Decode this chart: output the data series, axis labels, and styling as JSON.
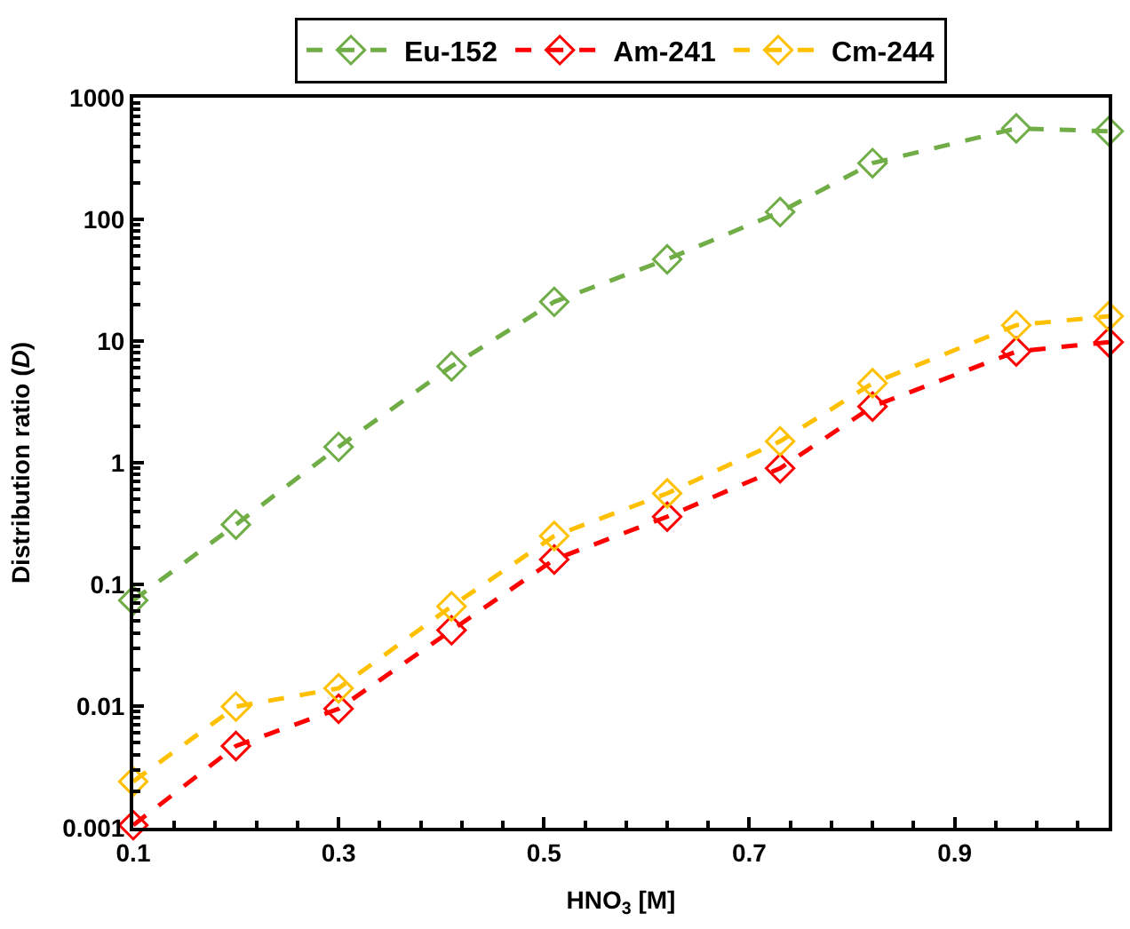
{
  "chart_data": {
    "type": "line",
    "xlabel": "HNO$_{3}$ [M]",
    "ylabel": "Distribution ratio (D)",
    "x": [
      0.1,
      0.2,
      0.3,
      0.41,
      0.51,
      0.62,
      0.73,
      0.82,
      0.96,
      1.05
    ],
    "series": [
      {
        "name": "Eu-152",
        "color": "#70ad47",
        "values": [
          0.074,
          0.31,
          1.35,
          6.2,
          21,
          47,
          115,
          290,
          560,
          530
        ]
      },
      {
        "name": "Am-241",
        "color": "#ff0000",
        "values": [
          0.00105,
          0.0047,
          0.0095,
          0.042,
          0.16,
          0.36,
          0.9,
          2.9,
          8.2,
          9.8
        ]
      },
      {
        "name": "Cm-244",
        "color": "#ffc000",
        "values": [
          0.0024,
          0.0099,
          0.014,
          0.066,
          0.25,
          0.56,
          1.5,
          4.5,
          13.5,
          16
        ]
      }
    ],
    "log": "y",
    "xlim": [
      0.1,
      1.05
    ],
    "xticks": [
      0.1,
      0.3,
      0.5,
      0.7,
      0.9
    ],
    "ylim": [
      0.001,
      1000
    ],
    "yticks": [
      0.001,
      0.01,
      0.1,
      1,
      10,
      100,
      1000
    ],
    "grid": false,
    "legend": "top",
    "marker": "diamond",
    "line_style": "dashed"
  }
}
